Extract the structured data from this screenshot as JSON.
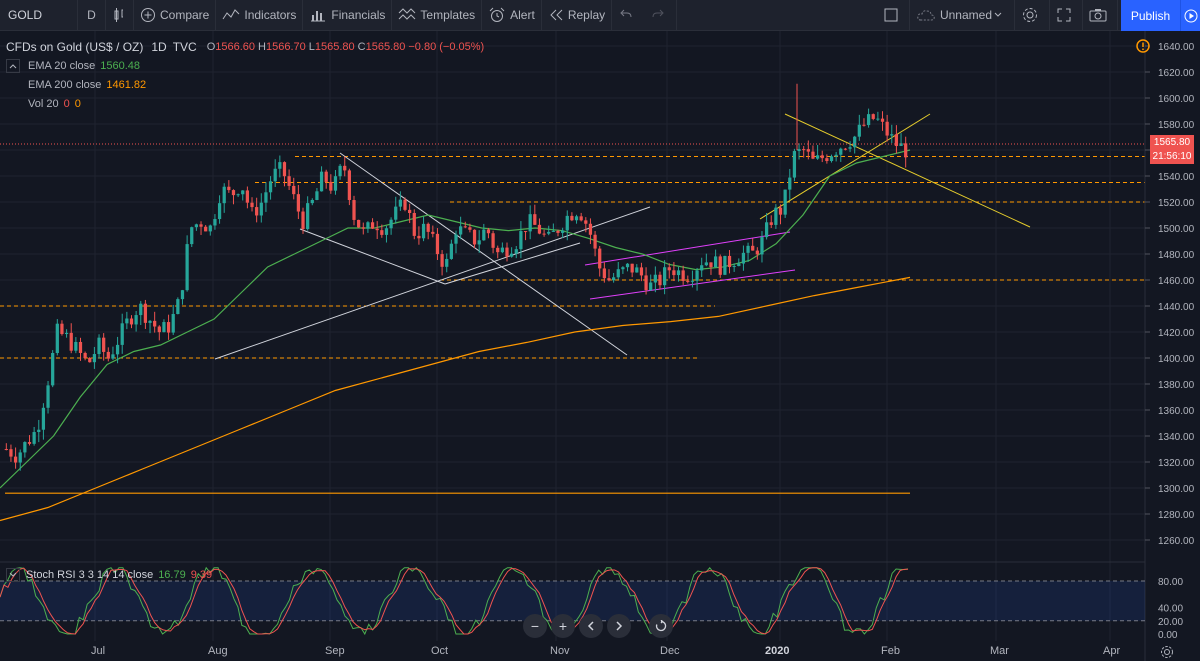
{
  "toolbar": {
    "symbol": "GOLD",
    "interval": "D",
    "compare": "Compare",
    "indicators": "Indicators",
    "financials": "Financials",
    "templates": "Templates",
    "alert": "Alert",
    "replay": "Replay",
    "layout_name": "Unnamed",
    "publish": "Publish"
  },
  "legend": {
    "title": "CFDs on Gold (US$ / OZ)",
    "interval": "1D",
    "source": "TVC",
    "open_k": "O",
    "open_v": "1566.60",
    "high_k": "H",
    "high_v": "1566.70",
    "low_k": "L",
    "low_v": "1565.80",
    "close_k": "C",
    "close_v": "1565.80",
    "change": "−0.80 (−0.05%)",
    "ema20_name": "EMA 20 close",
    "ema20_value": "1560.48",
    "ema200_name": "EMA 200 close",
    "ema200_value": "1461.82",
    "vol_name": "Vol 20",
    "vol_a": "0",
    "vol_b": "0"
  },
  "stoch": {
    "name": "Stoch RSI 3 3 14 14 close",
    "k": "16.79",
    "d": "9.39",
    "levels": [
      "80.00",
      "40.00",
      "20.00",
      "0.00"
    ]
  },
  "price_axis": [
    "1640.00",
    "1620.00",
    "1600.00",
    "1580.00",
    "1560.00",
    "1540.00",
    "1520.00",
    "1500.00",
    "1480.00",
    "1460.00",
    "1440.00",
    "1420.00",
    "1400.00",
    "1380.00",
    "1360.00",
    "1340.00",
    "1320.00",
    "1300.00",
    "1280.00",
    "1260.00"
  ],
  "last_price": "1565.80",
  "countdown": "21:56:10",
  "time_axis": [
    "Jul",
    "Aug",
    "Sep",
    "Oct",
    "Nov",
    "Dec",
    "2020",
    "Feb",
    "Mar",
    "Apr"
  ],
  "colors": {
    "up": "#26a69a",
    "down": "#ef5350",
    "ema20": "#4caf50",
    "ema200": "#ff9800",
    "accent": "#2962ff"
  },
  "chart_data": {
    "type": "candlestick",
    "x_range": [
      "2019-06-10",
      "2020-04-25"
    ],
    "ylim": [
      1250,
      1650
    ],
    "horizontal_levels": [
      1555,
      1535,
      1520,
      1460,
      1440,
      1400,
      1296
    ],
    "price_path": [
      1330,
      1325,
      1335,
      1345,
      1380,
      1420,
      1415,
      1405,
      1395,
      1410,
      1400,
      1415,
      1430,
      1440,
      1430,
      1420,
      1425,
      1445,
      1500,
      1505,
      1500,
      1530,
      1525,
      1535,
      1510,
      1520,
      1540,
      1545,
      1525,
      1505,
      1520,
      1540,
      1530,
      1550,
      1510,
      1495,
      1505,
      1500,
      1510,
      1520,
      1495,
      1500,
      1485,
      1470,
      1500,
      1495,
      1490,
      1500,
      1480,
      1485,
      1490,
      1505,
      1500,
      1490,
      1500,
      1510,
      1515,
      1500,
      1470,
      1460,
      1465,
      1470,
      1465,
      1455,
      1460,
      1470,
      1465,
      1465,
      1475,
      1475,
      1470,
      1475,
      1480,
      1480,
      1490,
      1510,
      1515,
      1555,
      1560,
      1550,
      1555,
      1560,
      1565,
      1570,
      1580,
      1585,
      1575,
      1565,
      1560
    ],
    "ema20_path": [
      1300,
      1320,
      1340,
      1370,
      1395,
      1405,
      1410,
      1420,
      1430,
      1450,
      1470,
      1480,
      1490,
      1500,
      1500,
      1505,
      1510,
      1505,
      1500,
      1498,
      1500,
      1498,
      1492,
      1485,
      1480,
      1472,
      1468,
      1470,
      1475,
      1488,
      1510,
      1540,
      1550,
      1555,
      1560
    ],
    "ema200_path": [
      1275,
      1285,
      1300,
      1315,
      1330,
      1345,
      1360,
      1375,
      1385,
      1395,
      1405,
      1412,
      1420,
      1425,
      1428,
      1432,
      1440,
      1448,
      1455,
      1462
    ]
  }
}
